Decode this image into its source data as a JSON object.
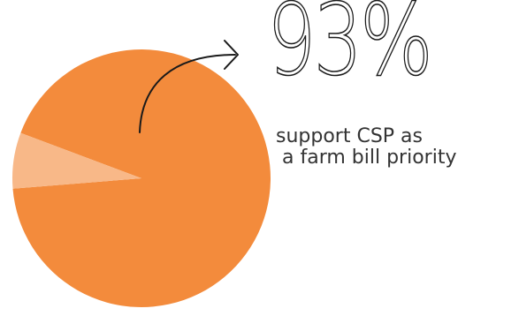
{
  "stat": {
    "value": "93%",
    "caption_line1": "support CSP as",
    "caption_line2": "a farm bill priority"
  },
  "chart_data": {
    "type": "pie",
    "title": "",
    "slices": [
      {
        "value": 93,
        "color": "#f38b3c"
      },
      {
        "value": 7,
        "color": "#f8b888"
      }
    ],
    "legend": "none",
    "annotation": {
      "type": "arrow",
      "text": "93%"
    }
  }
}
